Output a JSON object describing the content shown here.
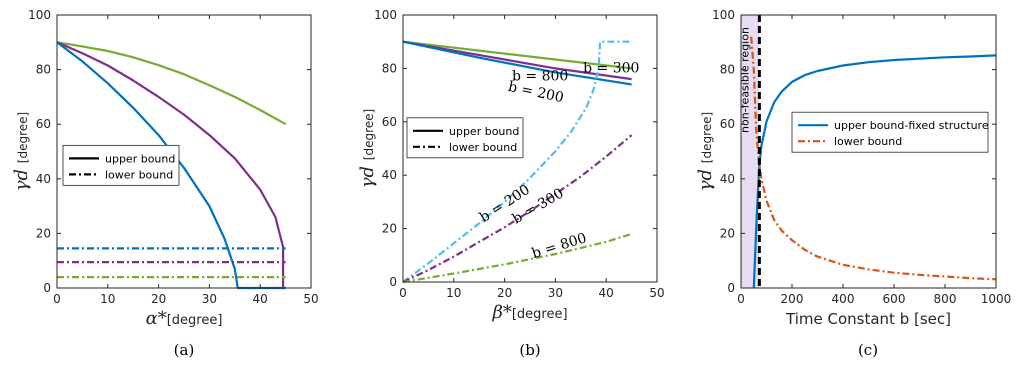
{
  "chart_data": [
    {
      "type": "line",
      "caption": "(a)",
      "ylabel_symbol": "γd",
      "ylabel_unit": "[degree]",
      "xlabel_symbol": "α*",
      "xlabel_unit": "[degree]",
      "xlim": [
        0,
        50
      ],
      "ylim": [
        0,
        100
      ],
      "xticks": [
        0,
        10,
        20,
        30,
        40,
        50
      ],
      "yticks": [
        0,
        20,
        40,
        60,
        80,
        100
      ],
      "legend": {
        "placement": "center-left",
        "entries": [
          {
            "label": "upper bound",
            "style": "solid"
          },
          {
            "label": "lower bound",
            "style": "dashdot"
          }
        ]
      },
      "series": [
        {
          "color": "#77AC30",
          "style": "solid",
          "x": [
            0,
            5,
            10,
            15,
            20,
            25,
            30,
            35,
            40,
            45
          ],
          "y": [
            90,
            88.5,
            86.8,
            84.5,
            81.6,
            78.3,
            74.3,
            70,
            65.2,
            60
          ]
        },
        {
          "color": "#7E2F8E",
          "style": "solid",
          "x": [
            0,
            5,
            10,
            15,
            20,
            25,
            30,
            35,
            40,
            43,
            44.5,
            44.5,
            45
          ],
          "y": [
            90,
            86,
            81.5,
            76,
            70,
            63.5,
            56,
            47.5,
            36,
            26,
            15,
            0,
            0
          ]
        },
        {
          "color": "#0072BD",
          "style": "solid",
          "x": [
            0,
            5,
            10,
            15,
            20,
            25,
            30,
            33,
            35,
            35.6,
            40,
            45
          ],
          "y": [
            90,
            83,
            75,
            66,
            56,
            44,
            30,
            18,
            7,
            0,
            0,
            0
          ]
        },
        {
          "color": "#0072BD",
          "style": "dashdot",
          "x": [
            0,
            45
          ],
          "y": [
            14.5,
            14.5
          ]
        },
        {
          "color": "#7E2F8E",
          "style": "dashdot",
          "x": [
            0,
            45
          ],
          "y": [
            9.5,
            9.5
          ]
        },
        {
          "color": "#77AC30",
          "style": "dashdot",
          "x": [
            0,
            45
          ],
          "y": [
            4,
            4
          ]
        }
      ]
    },
    {
      "type": "line",
      "caption": "(b)",
      "ylabel_symbol": "γd",
      "ylabel_unit": "[degree]",
      "xlabel_symbol": "β*",
      "xlabel_unit": "[degree]",
      "xlim": [
        0,
        50
      ],
      "ylim": [
        0,
        100
      ],
      "xticks": [
        0,
        10,
        20,
        30,
        40,
        50
      ],
      "yticks": [
        0,
        20,
        40,
        60,
        80,
        100
      ],
      "legend": {
        "placement": "center-left",
        "entries": [
          {
            "label": "upper bound",
            "style": "solid"
          },
          {
            "label": "lower bound",
            "style": "dashdot"
          }
        ]
      },
      "annotations": [
        "b = 800",
        "b = 300",
        "b = 200",
        "b = 200",
        "b = 300",
        "b = 800"
      ],
      "series": [
        {
          "color": "#77AC30",
          "style": "solid",
          "x": [
            0,
            45
          ],
          "y": [
            90,
            80
          ]
        },
        {
          "color": "#7E2F8E",
          "style": "solid",
          "x": [
            0,
            15,
            30,
            45
          ],
          "y": [
            90,
            85,
            80,
            76
          ]
        },
        {
          "color": "#0072BD",
          "style": "solid",
          "x": [
            0,
            15,
            30,
            45
          ],
          "y": [
            90,
            84,
            78.5,
            74
          ]
        },
        {
          "color": "#4DBEEE",
          "style": "dashdot",
          "x": [
            0,
            5,
            10,
            15,
            20,
            25,
            30,
            33,
            36,
            37.5,
            38.5,
            38.8,
            45
          ],
          "y": [
            0,
            7,
            14.5,
            22,
            30,
            39,
            49,
            56,
            65,
            72,
            80,
            90,
            90
          ]
        },
        {
          "color": "#7E2F8E",
          "style": "dashdot",
          "x": [
            0,
            5,
            10,
            15,
            20,
            25,
            30,
            35,
            40,
            45
          ],
          "y": [
            0,
            4.5,
            9.5,
            15,
            20.5,
            26.5,
            33,
            39.5,
            47,
            55
          ]
        },
        {
          "color": "#77AC30",
          "style": "dashdot",
          "x": [
            0,
            10,
            20,
            30,
            40,
            45
          ],
          "y": [
            0,
            3.2,
            6.6,
            10.5,
            15,
            18
          ]
        }
      ]
    },
    {
      "type": "line",
      "caption": "(c)",
      "ylabel_symbol": "γd",
      "ylabel_unit": "[degree]",
      "xlabel": "Time Constant b [sec]",
      "xlim": [
        0,
        1000
      ],
      "ylim": [
        0,
        100
      ],
      "xticks": [
        0,
        200,
        400,
        600,
        800,
        1000
      ],
      "yticks": [
        0,
        20,
        40,
        60,
        80,
        100
      ],
      "legend": {
        "placement": "center-right",
        "entries": [
          {
            "label": "upper bound-fixed structure",
            "style": "solid",
            "color": "#0072BD"
          },
          {
            "label": "lower bound",
            "style": "dashdot",
            "color": "#D95319"
          }
        ]
      },
      "region_label": "non-feasible region",
      "region_color": "#E6DDF2",
      "region_x": [
        0,
        72
      ],
      "boundary_x": 72,
      "series": [
        {
          "color": "#0072BD",
          "style": "solid",
          "x": [
            50,
            62,
            72,
            80,
            100,
            130,
            160,
            200,
            250,
            300,
            400,
            500,
            600,
            700,
            800,
            900,
            1000
          ],
          "y": [
            0,
            27,
            45,
            52,
            61,
            68,
            72,
            75.5,
            78,
            79.5,
            81.5,
            82.7,
            83.5,
            84,
            84.5,
            84.8,
            85.2
          ]
        },
        {
          "color": "#D95319",
          "style": "dashdot",
          "x": [
            40,
            50,
            60,
            72,
            80,
            100,
            130,
            160,
            200,
            250,
            300,
            400,
            500,
            600,
            700,
            800,
            900,
            1000
          ],
          "y": [
            92,
            80,
            57,
            45,
            40,
            32,
            25,
            21,
            17.5,
            14,
            11.5,
            8.5,
            6.8,
            5.6,
            4.8,
            4.2,
            3.6,
            3.2
          ]
        }
      ]
    }
  ]
}
